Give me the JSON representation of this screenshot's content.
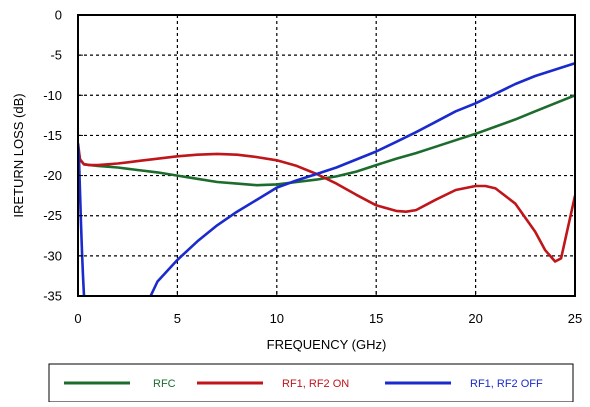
{
  "chart_data": {
    "type": "line",
    "title": "",
    "xlabel": "FREQUENCY (GHz)",
    "ylabel": "IRETURN LOSS (dB)",
    "xlim": [
      0,
      25
    ],
    "ylim": [
      -35,
      0
    ],
    "xticks": [
      0,
      5,
      10,
      15,
      20,
      25
    ],
    "yticks": [
      0,
      -5,
      -10,
      -15,
      -20,
      -25,
      -30,
      -35
    ],
    "grid": "dotted",
    "legend_position": "bottom",
    "series": [
      {
        "name": "RFC",
        "color": "#1e6b2e",
        "x": [
          0,
          0.1,
          0.3,
          0.6,
          1,
          2,
          3,
          4,
          5,
          6,
          7,
          8,
          9,
          10,
          11,
          12,
          13,
          14,
          15,
          16,
          17,
          18,
          19,
          20,
          21,
          22,
          23,
          24,
          25
        ],
        "y": [
          -16.5,
          -18.0,
          -18.6,
          -18.7,
          -18.8,
          -19.0,
          -19.3,
          -19.6,
          -20.0,
          -20.4,
          -20.8,
          -21.0,
          -21.2,
          -21.1,
          -20.8,
          -20.5,
          -20.1,
          -19.5,
          -18.7,
          -17.9,
          -17.2,
          -16.4,
          -15.6,
          -14.8,
          -13.9,
          -13.0,
          -12.0,
          -11.0,
          -10.0
        ]
      },
      {
        "name": "RF1, RF2 ON",
        "color": "#c0151b",
        "x": [
          0,
          0.1,
          0.3,
          0.6,
          1,
          2,
          3,
          4,
          5,
          6,
          7,
          8,
          9,
          10,
          11,
          12,
          13,
          14,
          15,
          16,
          16.5,
          17,
          18,
          19,
          20,
          20.5,
          21,
          22,
          23,
          23.5,
          24,
          24.3,
          25
        ],
        "y": [
          -16.0,
          -18.0,
          -18.6,
          -18.7,
          -18.7,
          -18.5,
          -18.2,
          -17.9,
          -17.6,
          -17.4,
          -17.3,
          -17.4,
          -17.7,
          -18.1,
          -18.8,
          -19.8,
          -21.0,
          -22.4,
          -23.7,
          -24.4,
          -24.5,
          -24.3,
          -23.0,
          -21.8,
          -21.3,
          -21.3,
          -21.6,
          -23.5,
          -27.0,
          -29.3,
          -30.7,
          -30.3,
          -22.5
        ]
      },
      {
        "name": "RF1, RF2 OFF",
        "color": "#1a2acd",
        "x": [
          0,
          0.05,
          0.1,
          0.15,
          0.2,
          0.25,
          0.3,
          0.35
        ],
        "y": [
          -16.0,
          -18.0,
          -22.0,
          -26.0,
          -29.5,
          -32.5,
          -35.0,
          -35.0
        ],
        "x2": [
          3.65,
          4,
          5,
          6,
          7,
          8,
          9,
          10,
          11,
          12,
          13,
          14,
          15,
          16,
          17,
          18,
          19,
          20,
          21,
          22,
          23,
          24,
          25
        ],
        "y2": [
          -35.0,
          -33.2,
          -30.5,
          -28.2,
          -26.2,
          -24.5,
          -23.0,
          -21.5,
          -20.6,
          -19.8,
          -19.0,
          -18.0,
          -17.0,
          -15.8,
          -14.6,
          -13.3,
          -12.0,
          -11.0,
          -9.8,
          -8.6,
          -7.6,
          -6.8,
          -6.0
        ]
      }
    ]
  },
  "colors": {
    "plot_border": "#000000",
    "grid": "#000000",
    "background": "#ffffff"
  }
}
